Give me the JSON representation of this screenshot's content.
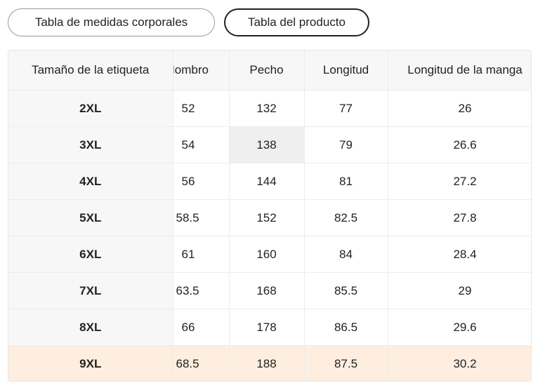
{
  "tabs": [
    {
      "label": "Tabla de medidas corporales",
      "active": false
    },
    {
      "label": "Tabla del producto",
      "active": true
    }
  ],
  "table": {
    "headers": [
      "Tamaño de la etiqueta",
      "Hombro",
      "Pecho",
      "Longitud",
      "Longitud de la manga"
    ],
    "rows": [
      [
        "2XL",
        "52",
        "132",
        "77",
        "26"
      ],
      [
        "3XL",
        "54",
        "138",
        "79",
        "26.6"
      ],
      [
        "4XL",
        "56",
        "144",
        "81",
        "27.2"
      ],
      [
        "5XL",
        "58.5",
        "152",
        "82.5",
        "27.8"
      ],
      [
        "6XL",
        "61",
        "160",
        "84",
        "28.4"
      ],
      [
        "7XL",
        "63.5",
        "168",
        "85.5",
        "29"
      ],
      [
        "8XL",
        "66",
        "178",
        "86.5",
        "29.6"
      ],
      [
        "9XL",
        "68.5",
        "188",
        "87.5",
        "30.2"
      ]
    ],
    "highlight_row": "9XL",
    "highlight_color": "#fdeee0"
  }
}
